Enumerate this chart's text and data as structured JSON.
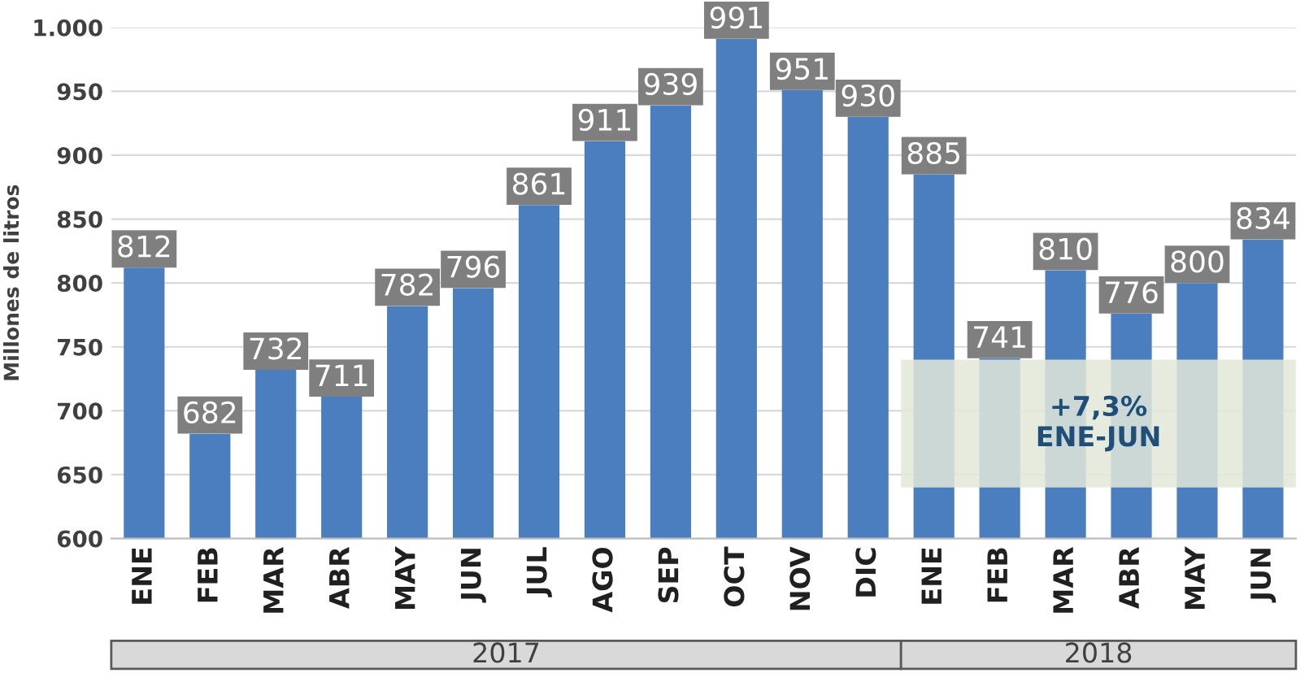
{
  "chart_data": {
    "type": "bar",
    "ylabel": "Millones de litros",
    "categories": [
      "ENE",
      "FEB",
      "MAR",
      "ABR",
      "MAY",
      "JUN",
      "JUL",
      "AGO",
      "SEP",
      "OCT",
      "NOV",
      "DIC",
      "ENE",
      "FEB",
      "MAR",
      "ABR",
      "MAY",
      "JUN"
    ],
    "values": [
      812,
      682,
      732,
      711,
      782,
      796,
      861,
      911,
      939,
      991,
      951,
      930,
      885,
      741,
      810,
      776,
      800,
      834
    ],
    "color": "#4a7ebf",
    "data_labels": true,
    "ylim": [
      600,
      1000
    ],
    "yticks": [
      600,
      650,
      700,
      750,
      800,
      850,
      900,
      950,
      {
        "value": 1000,
        "label": "1.000"
      }
    ],
    "grid": "y",
    "annotations": [
      "+7,3%\nENE-JUN",
      "2017",
      "2018"
    ]
  }
}
